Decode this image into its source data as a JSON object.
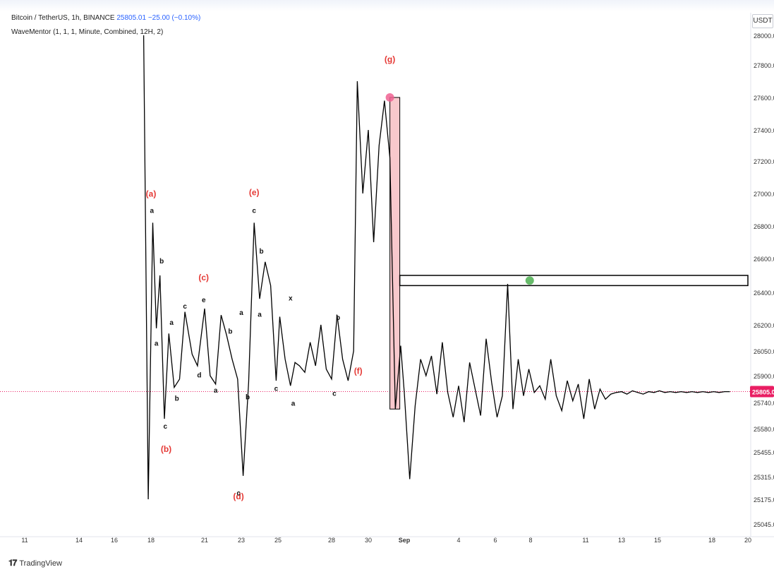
{
  "header": {
    "symbol_text": "Bitcoin / TetherUS, 1h, BINANCE",
    "last_price": "25805.01",
    "change": "−25.00 (−0.10%)",
    "indicator": "WaveMentor (1, 1, 1, Minute, Combined, 12H, 2)"
  },
  "price_axis": {
    "unit": "USDT",
    "current_price_label": "25805.01"
  },
  "footer": {
    "brand": "TradingView"
  },
  "colors": {
    "line": "#000000",
    "wave_label_red": "#e53935",
    "current_price": "#e91e63",
    "zone_fill": "#f8c8cc",
    "zone_stroke": "#000000",
    "green_marker": "#4caf50",
    "pink_marker": "#f06292"
  },
  "chart_data": {
    "type": "line",
    "title": "",
    "xlabel": "",
    "ylabel": "",
    "ylim": [
      25045,
      28000
    ],
    "ytick_labels": [
      "28000.00",
      "27800.00",
      "27600.00",
      "27400.00",
      "27200.00",
      "27000.00",
      "26800.00",
      "26600.00",
      "26400.00",
      "26200.00",
      "26050.00",
      "25900.00",
      "25740.00",
      "25580.00",
      "25455.00",
      "25315.00",
      "25175.00",
      "25045.00"
    ],
    "ytick_values": [
      28000,
      27800,
      27600,
      27400,
      27200,
      27000,
      26800,
      26600,
      26400,
      26200,
      26050,
      25900,
      25740,
      25580,
      25455,
      25315,
      25175,
      25045
    ],
    "xtick_labels": [
      "11",
      "14",
      "16",
      "18",
      "21",
      "23",
      "25",
      "28",
      "30",
      "Sep",
      "4",
      "6",
      "8",
      "11",
      "13",
      "15",
      "18",
      "20"
    ],
    "xtick_days": [
      11,
      14,
      16,
      18,
      21,
      23,
      25,
      28,
      30,
      32,
      35,
      37,
      39,
      42,
      44,
      46,
      49,
      51
    ],
    "x_unit": "day (Aug 1 = 1; Sep 1 = 32)",
    "series": [
      {
        "x": [
          17.6,
          17.85,
          18.1,
          18.3,
          18.5,
          18.75,
          19.0,
          19.3,
          19.6,
          19.9,
          20.3,
          20.6,
          21.0,
          21.3,
          21.6,
          21.9,
          22.2,
          22.5,
          22.8,
          23.1,
          23.4,
          23.7,
          24.0,
          24.3,
          24.6,
          24.9,
          25.1,
          25.4,
          25.7,
          25.95,
          26.2,
          26.5,
          26.8,
          27.1,
          27.4,
          27.7,
          28.0,
          28.3,
          28.6,
          28.9,
          29.2,
          29.4,
          29.7,
          30.0,
          30.3,
          30.6,
          30.9,
          31.2,
          31.5,
          31.8,
          32.0,
          32.3,
          32.6,
          32.9,
          33.2,
          33.5,
          33.8,
          34.1,
          34.4,
          34.7,
          35.0,
          35.3,
          35.6,
          35.9,
          36.2,
          36.5,
          36.8,
          37.1,
          37.4,
          37.7,
          38.0,
          38.3,
          38.6,
          38.9,
          39.2,
          39.5,
          39.8,
          40.1,
          40.4,
          40.7,
          41.0,
          41.3,
          41.6,
          41.9,
          42.2,
          42.5,
          42.8,
          43.1,
          43.4,
          43.7,
          44.0,
          44.3,
          44.6,
          44.9,
          45.2,
          45.5,
          45.8,
          46.1,
          46.4,
          46.7,
          47.0,
          47.3,
          47.6,
          47.9,
          48.2,
          48.5,
          48.8,
          49.1,
          49.4,
          49.7,
          50.0
        ],
        "y": [
          28000,
          25175,
          26820,
          26180,
          26500,
          25640,
          26150,
          25830,
          25880,
          26280,
          26030,
          25960,
          26300,
          25900,
          25850,
          26260,
          26140,
          26000,
          25880,
          25320,
          25860,
          26820,
          26360,
          26580,
          26440,
          25870,
          26250,
          26000,
          25840,
          25980,
          25960,
          25920,
          26100,
          25960,
          26200,
          25940,
          25880,
          26260,
          26000,
          25870,
          26050,
          27700,
          27000,
          27400,
          26700,
          27300,
          27580,
          27220,
          25700,
          26080,
          25800,
          25300,
          25720,
          26000,
          25900,
          26020,
          25790,
          26100,
          25800,
          25650,
          25840,
          25620,
          25980,
          25820,
          25660,
          26120,
          25860,
          25650,
          25780,
          26450,
          25700,
          26000,
          25780,
          25940,
          25800,
          25840,
          25760,
          26000,
          25780,
          25690,
          25870,
          25750,
          25850,
          25640,
          25880,
          25700,
          25820,
          25760,
          25790,
          25800,
          25805,
          25790,
          25810,
          25800,
          25790,
          25805,
          25800,
          25810,
          25800,
          25805,
          25800,
          25805,
          25800,
          25805,
          25800,
          25805,
          25800,
          25805,
          25800,
          25805,
          25805
        ]
      }
    ],
    "wave_labels_major": [
      {
        "text": "(a)",
        "x": 18.0,
        "y": 26980
      },
      {
        "text": "(b)",
        "x": 18.85,
        "y": 25455
      },
      {
        "text": "(c)",
        "x": 20.95,
        "y": 26470
      },
      {
        "text": "(d)",
        "x": 22.85,
        "y": 25175
      },
      {
        "text": "(e)",
        "x": 23.7,
        "y": 26990
      },
      {
        "text": "(f)",
        "x": 29.45,
        "y": 25910
      },
      {
        "text": "(g)",
        "x": 31.2,
        "y": 27820
      }
    ],
    "wave_labels_minor": [
      {
        "text": "a",
        "x": 18.05,
        "y": 26880
      },
      {
        "text": "a",
        "x": 18.3,
        "y": 26080
      },
      {
        "text": "b",
        "x": 18.6,
        "y": 26570
      },
      {
        "text": "c",
        "x": 18.8,
        "y": 25580
      },
      {
        "text": "a",
        "x": 19.15,
        "y": 26200
      },
      {
        "text": "b",
        "x": 19.45,
        "y": 25750
      },
      {
        "text": "c",
        "x": 19.9,
        "y": 26300
      },
      {
        "text": "e",
        "x": 20.95,
        "y": 26340
      },
      {
        "text": "d",
        "x": 20.7,
        "y": 25890
      },
      {
        "text": "a",
        "x": 21.6,
        "y": 25800
      },
      {
        "text": "b",
        "x": 22.4,
        "y": 26150
      },
      {
        "text": "a",
        "x": 23.0,
        "y": 26260
      },
      {
        "text": "c",
        "x": 22.85,
        "y": 25200
      },
      {
        "text": "b",
        "x": 23.35,
        "y": 25760
      },
      {
        "text": "c",
        "x": 23.7,
        "y": 26880
      },
      {
        "text": "b",
        "x": 24.1,
        "y": 26630
      },
      {
        "text": "a",
        "x": 24.0,
        "y": 26250
      },
      {
        "text": "c",
        "x": 24.9,
        "y": 25810
      },
      {
        "text": "x",
        "x": 25.7,
        "y": 26350
      },
      {
        "text": "a",
        "x": 25.85,
        "y": 25720
      },
      {
        "text": "b",
        "x": 28.35,
        "y": 26230
      },
      {
        "text": "c",
        "x": 28.15,
        "y": 25780
      }
    ],
    "annotations": {
      "red_zone": {
        "x0": 31.2,
        "x1": 31.75,
        "y0": 25700,
        "y1": 27600
      },
      "horizontal_box": {
        "x0": 31.75,
        "x1": 51.0,
        "y0": 26440,
        "y1": 26500
      },
      "pink_marker": {
        "x": 31.2,
        "y": 27600
      },
      "green_marker": {
        "x": 38.95,
        "y": 26470
      },
      "current_price": 25805.01
    },
    "grid": false,
    "legend": "top-left"
  }
}
